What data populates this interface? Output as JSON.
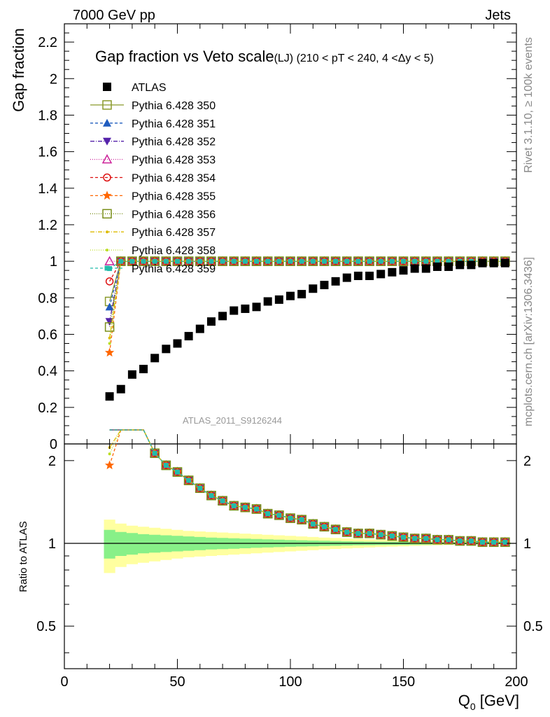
{
  "header": {
    "left": "7000 GeV pp",
    "right": "Jets",
    "side_rivet": "Rivet 3.1.10, ≥ 100k events",
    "side_mcplots": "mcplots.cern.ch [arXiv:1306.3436]",
    "watermark": "ATLAS_2011_S9126244"
  },
  "chart_data": {
    "type": "scatter",
    "title": "Gap fraction vs Veto scale",
    "subtitle": "(LJ) (210 < pT < 240, 4 <Δy < 5)",
    "xlabel": "Q",
    "xlabel_sub": "0",
    "xlabel_unit": " [GeV]",
    "ylabel": "Gap fraction",
    "ratio_ylabel": "Ratio to ATLAS",
    "xlim": [
      0,
      200
    ],
    "ylim": [
      0,
      2.3
    ],
    "ratio_ylim": [
      0.35,
      2.3
    ],
    "x_ticks": [
      0,
      50,
      100,
      150,
      200
    ],
    "x_tick_labels": [
      "0",
      "50",
      "100",
      "150",
      "200"
    ],
    "y_ticks": [
      0,
      0.2,
      0.4,
      0.6,
      0.8,
      1,
      1.2,
      1.4,
      1.6,
      1.8,
      2,
      2.2
    ],
    "y_tick_labels": [
      "0",
      "0.2",
      "0.4",
      "0.6",
      "0.8",
      "1",
      "1.2",
      "1.4",
      "1.6",
      "1.8",
      "2",
      "2.2"
    ],
    "ratio_ticks": [
      0.5,
      1,
      2
    ],
    "ratio_tick_labels": [
      "0.5",
      "1",
      "2"
    ],
    "x": [
      20,
      25,
      30,
      35,
      40,
      45,
      50,
      55,
      60,
      65,
      70,
      75,
      80,
      85,
      90,
      95,
      100,
      105,
      110,
      115,
      120,
      125,
      130,
      135,
      140,
      145,
      150,
      155,
      160,
      165,
      170,
      175,
      180,
      185,
      190,
      195
    ],
    "atlas": [
      0.26,
      0.3,
      0.38,
      0.41,
      0.47,
      0.52,
      0.55,
      0.59,
      0.63,
      0.67,
      0.7,
      0.73,
      0.74,
      0.75,
      0.78,
      0.79,
      0.81,
      0.82,
      0.85,
      0.87,
      0.89,
      0.91,
      0.92,
      0.92,
      0.93,
      0.94,
      0.95,
      0.96,
      0.96,
      0.97,
      0.97,
      0.98,
      0.98,
      0.99,
      0.99,
      0.99
    ],
    "band_inner": [
      0.12,
      0.1,
      0.09,
      0.08,
      0.075,
      0.07,
      0.065,
      0.06,
      0.055,
      0.05,
      0.047,
      0.044,
      0.04,
      0.037,
      0.034,
      0.031,
      0.028,
      0.026,
      0.024,
      0.022,
      0.02,
      0.018,
      0.016,
      0.015,
      0.014,
      0.013,
      0.012,
      0.011,
      0.01,
      0.009,
      0.008,
      0.008,
      0.007,
      0.007,
      0.006,
      0.006
    ],
    "band_outer": [
      0.22,
      0.18,
      0.16,
      0.15,
      0.14,
      0.13,
      0.12,
      0.11,
      0.105,
      0.1,
      0.095,
      0.09,
      0.085,
      0.08,
      0.075,
      0.07,
      0.065,
      0.06,
      0.055,
      0.05,
      0.046,
      0.042,
      0.038,
      0.034,
      0.03,
      0.027,
      0.024,
      0.021,
      0.018,
      0.016,
      0.014,
      0.012,
      0.011,
      0.01,
      0.009,
      0.008
    ],
    "series": [
      {
        "name": "ATLAS",
        "marker": "square-filled",
        "color": "#000000",
        "dash": "none",
        "first_value": 0.26
      },
      {
        "name": "Pythia 6.428 350",
        "marker": "square-open",
        "color": "#8a9a2b",
        "dash": "solid",
        "first_value": 0.78
      },
      {
        "name": "Pythia 6.428 351",
        "marker": "triangle-up",
        "color": "#1f5cbf",
        "dash": "4,3",
        "first_value": 0.75
      },
      {
        "name": "Pythia 6.428 352",
        "marker": "triangle-down",
        "color": "#5522aa",
        "dash": "6,2,1,2",
        "first_value": 0.67
      },
      {
        "name": "Pythia 6.428 353",
        "marker": "triangle-up-open",
        "color": "#cc2299",
        "dash": "1,2",
        "first_value": 1.0
      },
      {
        "name": "Pythia 6.428 354",
        "marker": "circle-open",
        "color": "#dd1111",
        "dash": "4,3",
        "first_value": 0.89
      },
      {
        "name": "Pythia 6.428 355",
        "marker": "star",
        "color": "#ff6600",
        "dash": "4,3",
        "first_value": 0.5
      },
      {
        "name": "Pythia 6.428 356",
        "marker": "square-open",
        "color": "#7a8f1a",
        "dash": "1,2",
        "first_value": 0.64
      },
      {
        "name": "Pythia 6.428 357",
        "marker": "dot",
        "color": "#ddbb00",
        "dash": "6,2,1,2",
        "first_value": 0.58
      },
      {
        "name": "Pythia 6.428 358",
        "marker": "dot",
        "color": "#bbdd22",
        "dash": "1,2",
        "first_value": 0.55
      },
      {
        "name": "Pythia 6.428 359",
        "marker": "square-filled-small",
        "color": "#22bbaa",
        "dash": "4,3",
        "first_value": 0.96
      }
    ],
    "mc_value_after_first_bin": 1.0,
    "grid": false,
    "legend_position": "top-left"
  },
  "colors": {
    "band_inner": "#88f088",
    "band_outer": "#ffffa0",
    "reference_line": "#000000",
    "side_text": "#888888"
  }
}
